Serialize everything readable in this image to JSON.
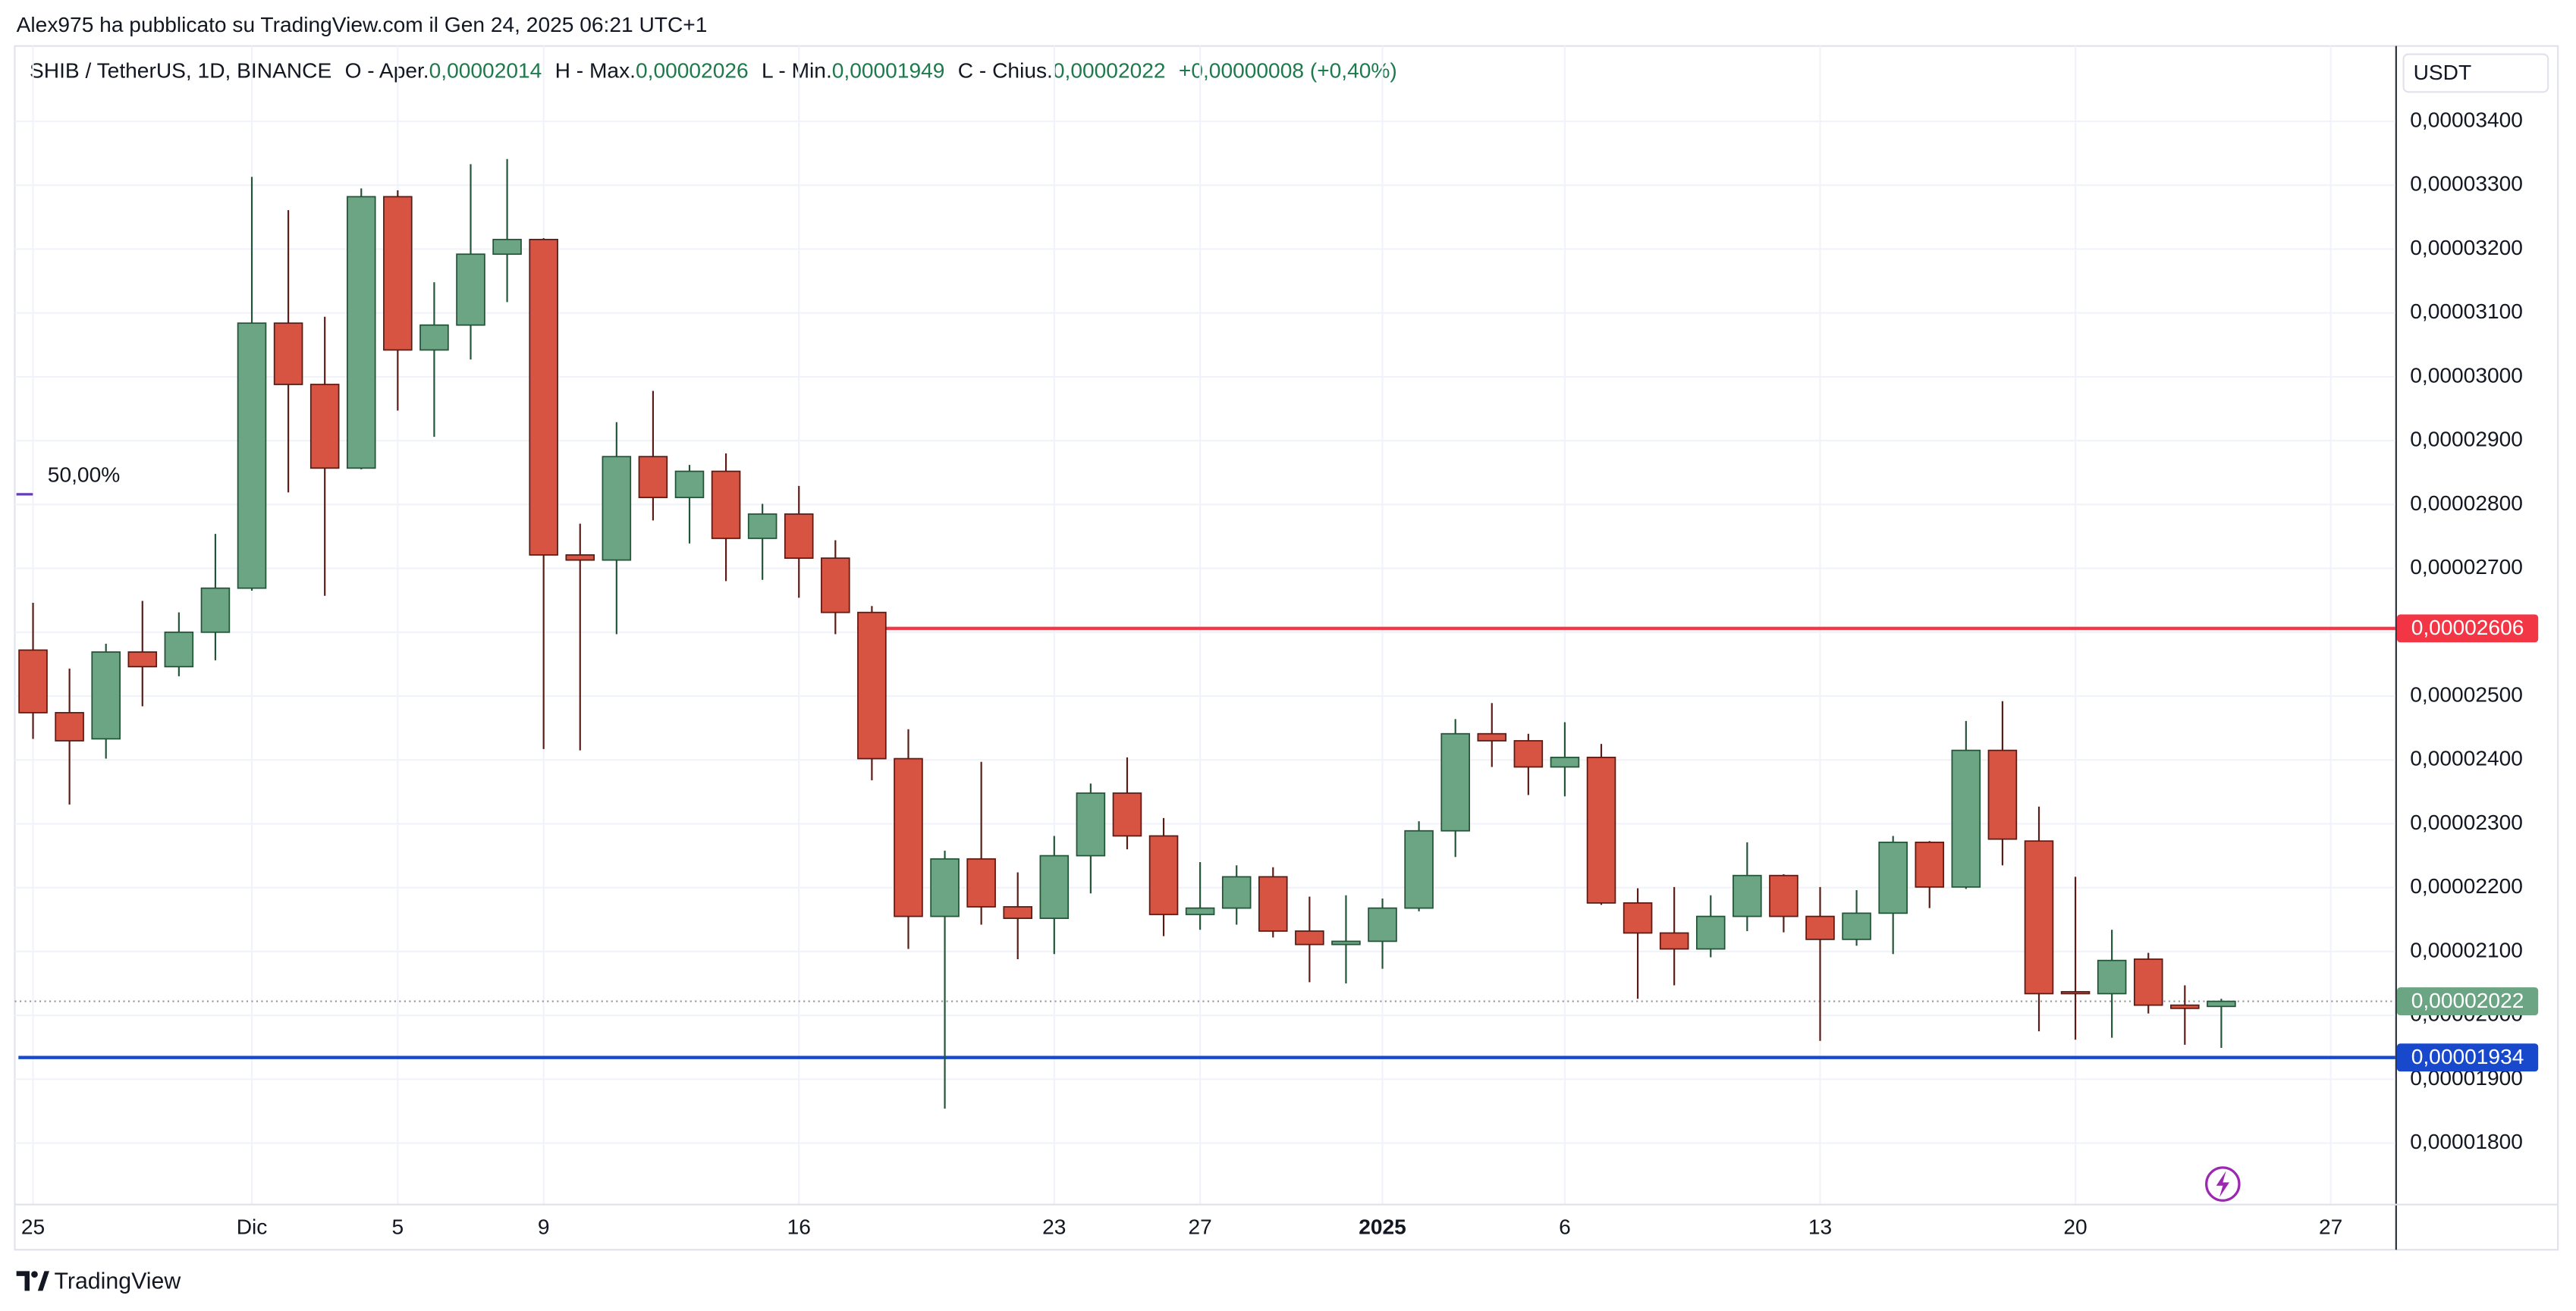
{
  "chart_data": {
    "type": "candlestick",
    "caption": "Alex975 ha pubblicato su TradingView.com il Gen 24, 2025 06:21 UTC+1",
    "legend": {
      "symbol": "SHIB / TetherUS, 1D, BINANCE",
      "fields": [
        {
          "name": "O - Aper.",
          "value": 2.014e-05,
          "label": "0,00002014"
        },
        {
          "name": "H - Max.",
          "value": 2.026e-05,
          "label": "0,00002026"
        },
        {
          "name": "L - Min.",
          "value": 1.949e-05,
          "label": "0,00001949"
        },
        {
          "name": "C - Chius.",
          "value": 2.022e-05,
          "label": "0,00002022"
        }
      ],
      "change": {
        "value": 8e-08,
        "label": "+0,00000008 (+0,40%)"
      },
      "color": "#1e7a4d"
    },
    "currency": "USDT",
    "categories": [
      "25",
      null,
      null,
      null,
      null,
      null,
      "Dic",
      null,
      null,
      null,
      "5",
      null,
      null,
      null,
      "9",
      null,
      null,
      null,
      null,
      null,
      null,
      "16",
      null,
      null,
      null,
      null,
      null,
      null,
      "23",
      null,
      null,
      null,
      "27",
      null,
      null,
      null,
      null,
      "2025",
      null,
      null,
      null,
      null,
      "6",
      null,
      null,
      null,
      null,
      null,
      null,
      "13",
      null,
      null,
      null,
      null,
      null,
      null,
      "20",
      null,
      null,
      null,
      null,
      null,
      null,
      "27",
      null
    ],
    "open": [
      2.572e-05,
      2.474e-05,
      2.433e-05,
      2.569e-05,
      2.546e-05,
      2.6e-05,
      2.669e-05,
      3.084e-05,
      2.988e-05,
      2.857e-05,
      3.282e-05,
      3.042e-05,
      3.081e-05,
      3.192e-05,
      3.215e-05,
      2.721e-05,
      2.713e-05,
      2.875e-05,
      2.811e-05,
      2.852e-05,
      2.747e-05,
      2.785e-05,
      2.716e-05,
      2.631e-05,
      2.402e-05,
      2.155e-05,
      2.245e-05,
      2.17e-05,
      2.152e-05,
      2.25e-05,
      2.348e-05,
      2.281e-05,
      2.158e-05,
      2.168e-05,
      2.217e-05,
      2.132e-05,
      2.111e-05,
      2.116e-05,
      2.168e-05,
      2.289e-05,
      2.441e-05,
      2.43e-05,
      2.389e-05,
      2.404e-05,
      2.176e-05,
      2.129e-05,
      2.104e-05,
      2.155e-05,
      2.219e-05,
      2.155e-05,
      2.119e-05,
      2.16e-05,
      2.271e-05,
      2.201e-05,
      2.415e-05,
      2.273e-05,
      2.037e-05,
      2.034e-05,
      2.088e-05,
      2.016e-05,
      2.014e-05,
      null,
      null,
      null,
      null
    ],
    "high": [
      2.646e-05,
      2.543e-05,
      2.582e-05,
      2.649e-05,
      2.631e-05,
      2.754e-05,
      3.313e-05,
      3.261e-05,
      3.094e-05,
      3.295e-05,
      3.292e-05,
      3.148e-05,
      3.333e-05,
      3.341e-05,
      3.217e-05,
      2.77e-05,
      2.929e-05,
      2.978e-05,
      2.862e-05,
      2.88e-05,
      2.801e-05,
      2.829e-05,
      2.744e-05,
      2.641e-05,
      2.448e-05,
      2.258e-05,
      2.397e-05,
      2.224e-05,
      2.281e-05,
      2.363e-05,
      2.404e-05,
      2.309e-05,
      2.24e-05,
      2.235e-05,
      2.232e-05,
      2.186e-05,
      2.188e-05,
      2.183e-05,
      2.304e-05,
      2.464e-05,
      2.489e-05,
      2.441e-05,
      2.459e-05,
      2.425e-05,
      2.199e-05,
      2.201e-05,
      2.188e-05,
      2.271e-05,
      2.221e-05,
      2.201e-05,
      2.196e-05,
      2.281e-05,
      2.273e-05,
      2.461e-05,
      2.492e-05,
      2.327e-05,
      2.217e-05,
      2.134e-05,
      2.098e-05,
      2.047e-05,
      2.026e-05,
      null,
      null,
      null,
      null
    ],
    "low": [
      2.433e-05,
      2.33e-05,
      2.402e-05,
      2.484e-05,
      2.531e-05,
      2.556e-05,
      2.665e-05,
      2.819e-05,
      2.657e-05,
      2.855e-05,
      2.947e-05,
      2.906e-05,
      3.027e-05,
      3.117e-05,
      2.417e-05,
      2.415e-05,
      2.597e-05,
      2.775e-05,
      2.739e-05,
      2.68e-05,
      2.682e-05,
      2.654e-05,
      2.597e-05,
      2.368e-05,
      2.104e-05,
      1.854e-05,
      2.142e-05,
      2.088e-05,
      2.096e-05,
      2.191e-05,
      2.26e-05,
      2.124e-05,
      2.134e-05,
      2.142e-05,
      2.122e-05,
      2.052e-05,
      2.05e-05,
      2.073e-05,
      2.163e-05,
      2.248e-05,
      2.389e-05,
      2.345e-05,
      2.343e-05,
      2.173e-05,
      2.026e-05,
      2.047e-05,
      2.091e-05,
      2.132e-05,
      2.13e-05,
      1.96e-05,
      2.109e-05,
      2.096e-05,
      2.168e-05,
      2.198e-05,
      2.235e-05,
      1.975e-05,
      1.962e-05,
      1.965e-05,
      2.003e-05,
      1.954e-05,
      1.949e-05,
      null,
      null,
      null,
      null
    ],
    "close": [
      2.474e-05,
      2.43e-05,
      2.569e-05,
      2.546e-05,
      2.6e-05,
      2.669e-05,
      3.084e-05,
      2.988e-05,
      2.857e-05,
      3.282e-05,
      3.042e-05,
      3.081e-05,
      3.192e-05,
      3.215e-05,
      2.721e-05,
      2.713e-05,
      2.875e-05,
      2.811e-05,
      2.852e-05,
      2.747e-05,
      2.785e-05,
      2.716e-05,
      2.631e-05,
      2.402e-05,
      2.155e-05,
      2.245e-05,
      2.17e-05,
      2.152e-05,
      2.25e-05,
      2.348e-05,
      2.281e-05,
      2.158e-05,
      2.168e-05,
      2.217e-05,
      2.132e-05,
      2.111e-05,
      2.116e-05,
      2.168e-05,
      2.289e-05,
      2.441e-05,
      2.43e-05,
      2.389e-05,
      2.404e-05,
      2.176e-05,
      2.129e-05,
      2.104e-05,
      2.155e-05,
      2.219e-05,
      2.155e-05,
      2.119e-05,
      2.16e-05,
      2.271e-05,
      2.201e-05,
      2.415e-05,
      2.276e-05,
      2.034e-05,
      2.034e-05,
      2.086e-05,
      2.016e-05,
      2.011e-05,
      2.022e-05,
      null,
      null,
      null,
      null
    ],
    "up_color": "#6ba583",
    "down_color": "#d75442",
    "ylim": [
      1.705e-05,
      3.518e-05
    ],
    "yticks": [
      {
        "value": 1.8e-05,
        "label": "0,00001800"
      },
      {
        "value": 1.9e-05,
        "label": "0,00001900"
      },
      {
        "value": 2e-05,
        "label": "0,00002000"
      },
      {
        "value": 2.1e-05,
        "label": "0,00002100"
      },
      {
        "value": 2.2e-05,
        "label": "0,00002200"
      },
      {
        "value": 2.3e-05,
        "label": "0,00002300"
      },
      {
        "value": 2.4e-05,
        "label": "0,00002400"
      },
      {
        "value": 2.5e-05,
        "label": "0,00002500"
      },
      {
        "value": 2.6e-05,
        "label": "0,00002600"
      },
      {
        "value": 2.7e-05,
        "label": "0,00002700"
      },
      {
        "value": 2.8e-05,
        "label": "0,00002800"
      },
      {
        "value": 2.9e-05,
        "label": "0,00002900"
      },
      {
        "value": 3e-05,
        "label": "0,00003000"
      },
      {
        "value": 3.1e-05,
        "label": "0,00003100"
      },
      {
        "value": 3.2e-05,
        "label": "0,00003200"
      },
      {
        "value": 3.3e-05,
        "label": "0,00003300"
      },
      {
        "value": 3.4e-05,
        "label": "0,00003400"
      }
    ],
    "grid": true,
    "hlines": [
      {
        "value": 2.606e-05,
        "label": "0,00002606",
        "color": "#f23645",
        "from_index": 23
      },
      {
        "value": 1.934e-05,
        "label": "0,00001934",
        "color": "#1848cc",
        "from_index": 0
      }
    ],
    "last_price": {
      "value": 2.022e-05,
      "label": "0,00002022",
      "color": "#6ba583"
    },
    "fib_level": {
      "value": 2.816e-05,
      "label": "50,00%",
      "color": "#673ab7"
    },
    "brand": "TradingView"
  }
}
